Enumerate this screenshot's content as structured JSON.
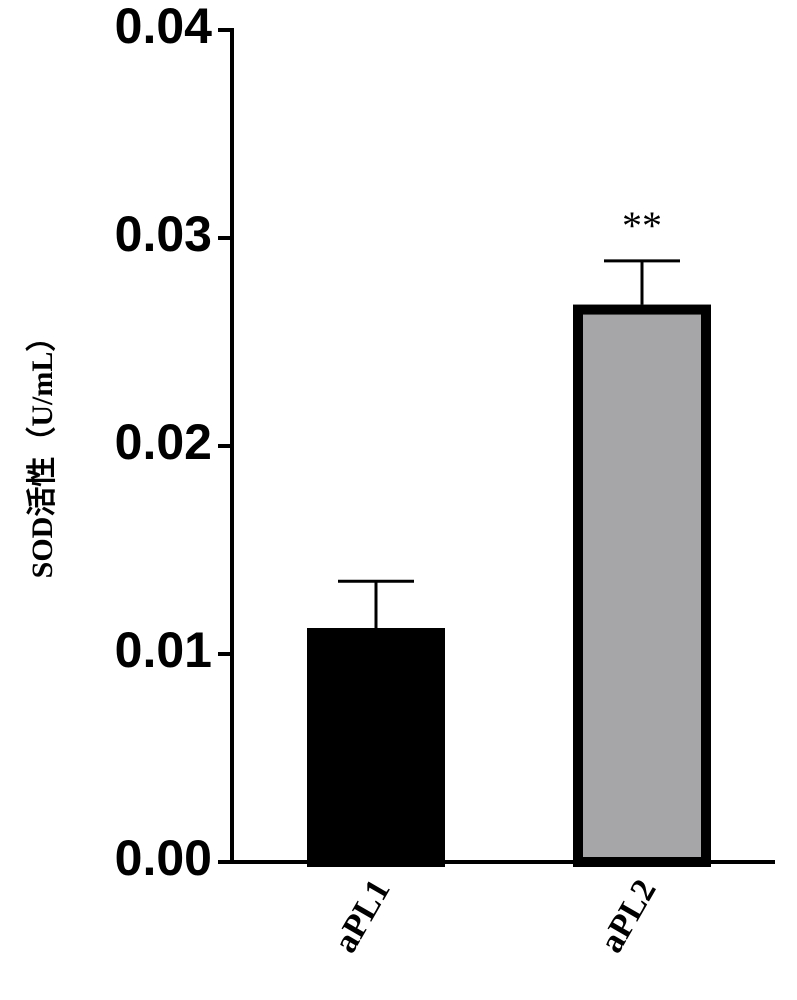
{
  "chart_data": {
    "type": "bar",
    "y_label": "SOD活性（U/mL）",
    "categories": [
      "aPL1",
      "aPL2"
    ],
    "values": [
      0.01125,
      0.0268
    ],
    "errors": [
      0.00225,
      0.0021
    ],
    "colors": [
      "#000000",
      "#a6a6a8"
    ],
    "value_annotations": [
      null,
      "**"
    ],
    "ylim": [
      0,
      0.04
    ],
    "yticks": [
      {
        "value": 0,
        "label": "0.00"
      },
      0.01,
      0.02,
      0.03,
      0.04
    ],
    "grid": false
  }
}
